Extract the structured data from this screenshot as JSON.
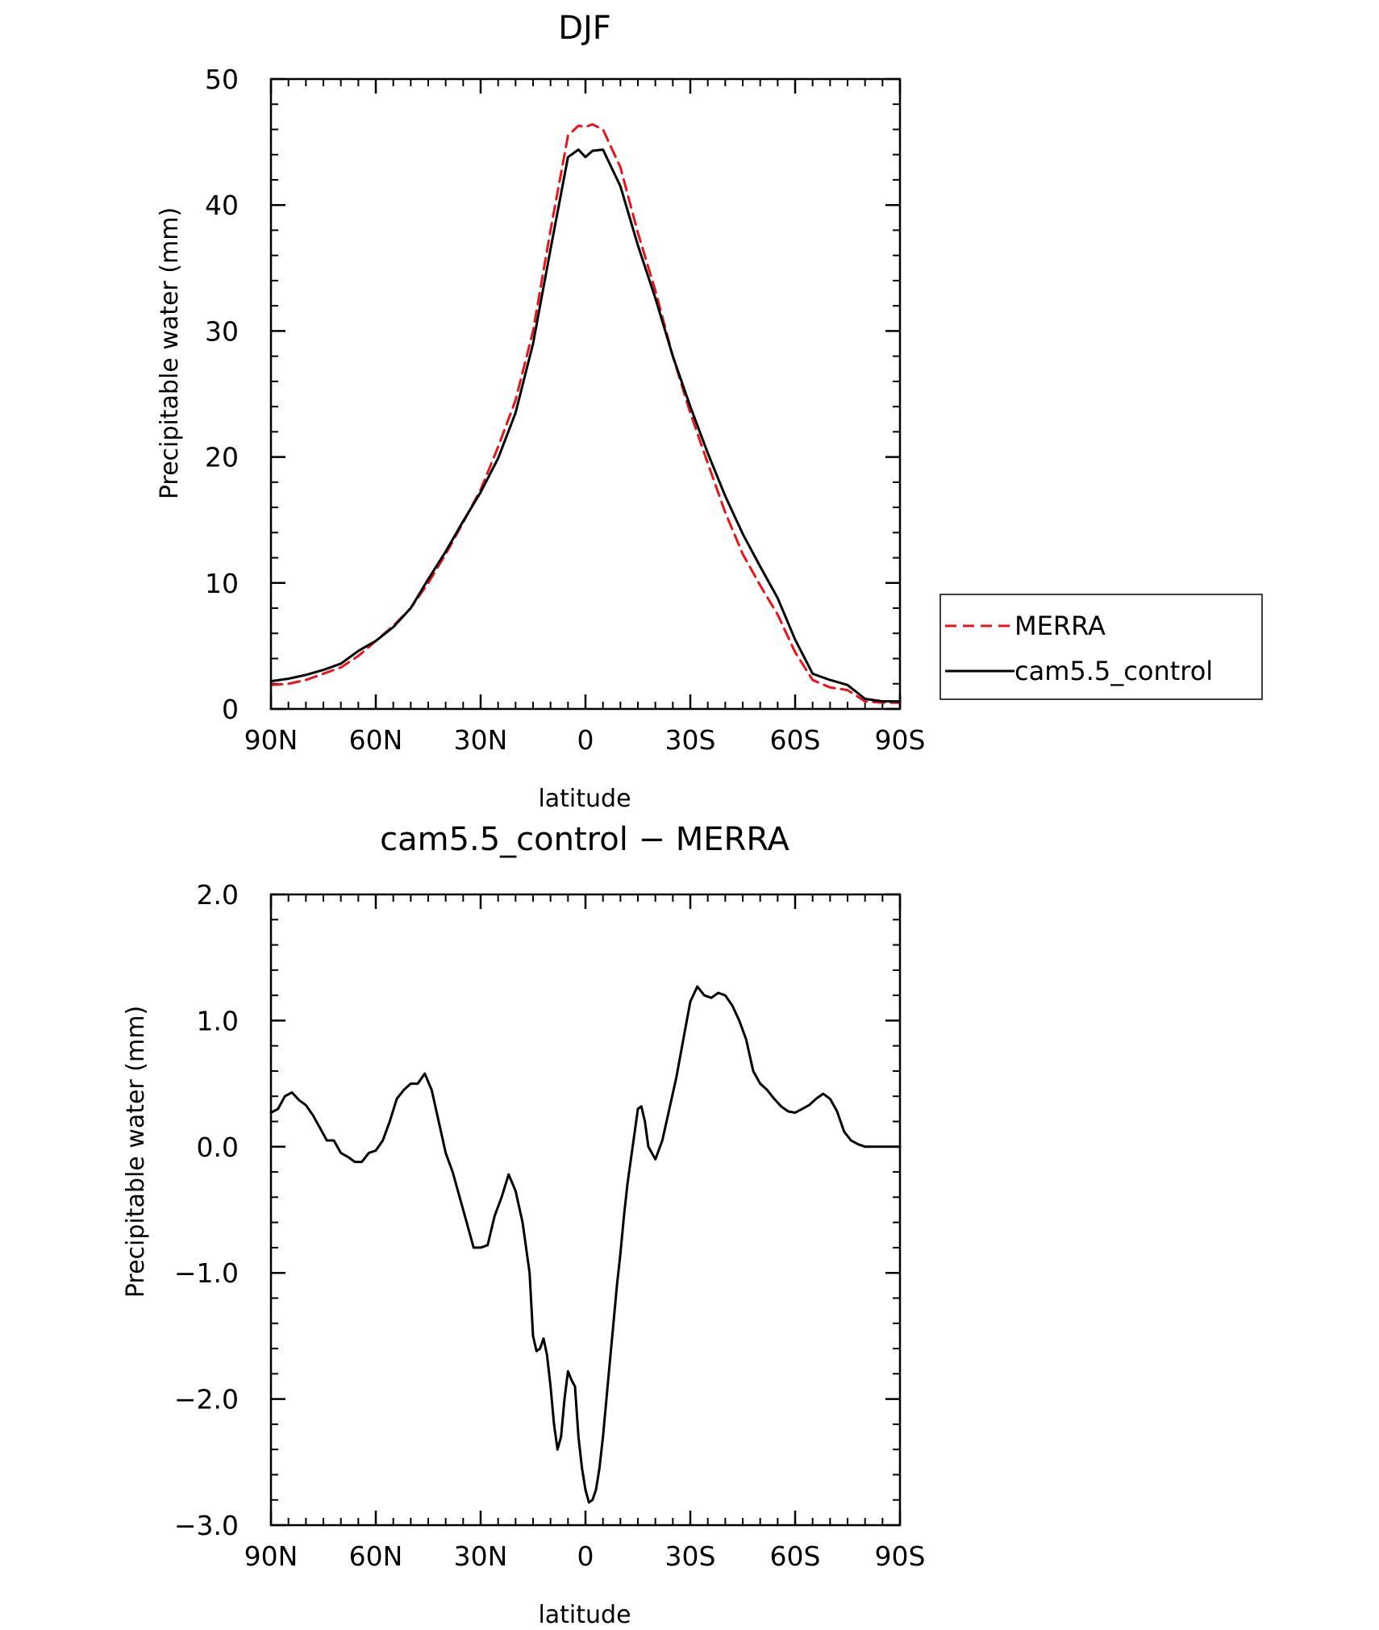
{
  "chart_data": [
    {
      "type": "line",
      "title": "DJF",
      "xlabel": "latitude",
      "ylabel": "Precipitable water (mm)",
      "xlim": [
        90,
        -90
      ],
      "ylim": [
        0,
        50
      ],
      "x_ticks": [
        90,
        60,
        30,
        0,
        -30,
        -60,
        -90
      ],
      "x_tick_labels": [
        "90N",
        "60N",
        "30N",
        "0",
        "30S",
        "60S",
        "90S"
      ],
      "y_ticks": [
        0,
        10,
        20,
        30,
        40,
        50
      ],
      "y_tick_labels": [
        "0",
        "10",
        "20",
        "30",
        "40",
        "50"
      ],
      "grid": false,
      "legend_position": "right",
      "series": [
        {
          "name": "MERRA",
          "color": "#e8141c",
          "dash": "dashed",
          "x": [
            90,
            85,
            80,
            75,
            70,
            65,
            60,
            55,
            50,
            45,
            40,
            35,
            30,
            25,
            20,
            15,
            10,
            5,
            2,
            0,
            -2,
            -5,
            -10,
            -15,
            -20,
            -25,
            -30,
            -35,
            -40,
            -45,
            -50,
            -55,
            -60,
            -65,
            -70,
            -75,
            -80,
            -85,
            -90
          ],
          "y": [
            1.9,
            2.0,
            2.3,
            2.8,
            3.3,
            4.2,
            5.4,
            6.6,
            8.0,
            10.0,
            12.3,
            14.8,
            17.4,
            20.8,
            24.5,
            30.0,
            38.0,
            45.5,
            46.3,
            46.2,
            46.4,
            46.0,
            43.0,
            37.8,
            33.2,
            28.0,
            23.5,
            19.5,
            15.6,
            12.3,
            9.8,
            7.5,
            4.5,
            2.3,
            1.7,
            1.5,
            0.6,
            0.5,
            0.5
          ]
        },
        {
          "name": "cam5.5_control",
          "color": "#000000",
          "dash": "solid",
          "x": [
            90,
            85,
            80,
            75,
            70,
            65,
            60,
            55,
            50,
            45,
            40,
            35,
            30,
            25,
            20,
            15,
            10,
            5,
            2,
            0,
            -2,
            -5,
            -10,
            -15,
            -20,
            -25,
            -30,
            -35,
            -40,
            -45,
            -50,
            -55,
            -60,
            -65,
            -70,
            -75,
            -80,
            -85,
            -90
          ],
          "y": [
            2.2,
            2.4,
            2.7,
            3.1,
            3.6,
            4.6,
            5.4,
            6.5,
            8.0,
            10.3,
            12.5,
            14.9,
            17.2,
            19.9,
            23.5,
            29.0,
            36.5,
            43.8,
            44.4,
            43.8,
            44.3,
            44.4,
            41.5,
            36.8,
            32.6,
            28.0,
            24.0,
            20.3,
            16.9,
            13.9,
            11.3,
            8.8,
            5.5,
            2.8,
            2.3,
            1.9,
            0.8,
            0.6,
            0.6
          ]
        }
      ]
    },
    {
      "type": "line",
      "title": "cam5.5_control − MERRA",
      "xlabel": "latitude",
      "ylabel": "Precipitable water (mm)",
      "xlim": [
        90,
        -90
      ],
      "ylim": [
        -3.0,
        2.0
      ],
      "x_ticks": [
        90,
        60,
        30,
        0,
        -30,
        -60,
        -90
      ],
      "x_tick_labels": [
        "90N",
        "60N",
        "30N",
        "0",
        "30S",
        "60S",
        "90S"
      ],
      "y_ticks": [
        2.0,
        1.0,
        0.0,
        -1.0,
        -2.0,
        -3.0
      ],
      "y_tick_labels": [
        "2.0",
        "1.0",
        "0.0",
        "−1.0",
        "−2.0",
        "−3.0"
      ],
      "grid": false,
      "series": [
        {
          "name": "",
          "color": "#000000",
          "dash": "solid",
          "x": [
            90,
            88,
            86,
            84,
            82,
            80,
            78,
            76,
            74,
            72,
            70,
            68,
            66,
            64,
            62,
            60,
            58,
            56,
            54,
            52,
            50,
            48,
            46,
            44,
            42,
            40,
            38,
            36,
            34,
            32,
            30,
            28,
            26,
            24,
            22,
            20,
            18,
            16,
            15,
            14,
            13,
            12,
            11,
            10,
            9,
            8,
            7,
            6,
            5,
            4,
            3,
            2,
            1,
            0,
            -1,
            -2,
            -3,
            -4,
            -5,
            -6,
            -7,
            -8,
            -9,
            -10,
            -11,
            -12,
            -13,
            -14,
            -15,
            -16,
            -17,
            -18,
            -20,
            -22,
            -24,
            -26,
            -28,
            -30,
            -32,
            -34,
            -36,
            -38,
            -40,
            -42,
            -44,
            -46,
            -48,
            -50,
            -52,
            -54,
            -56,
            -58,
            -60,
            -62,
            -64,
            -66,
            -68,
            -70,
            -72,
            -74,
            -76,
            -78,
            -80,
            -82,
            -84,
            -86,
            -88,
            -90
          ],
          "y": [
            0.27,
            0.3,
            0.4,
            0.43,
            0.37,
            0.33,
            0.25,
            0.15,
            0.05,
            0.05,
            -0.05,
            -0.08,
            -0.12,
            -0.12,
            -0.05,
            -0.03,
            0.05,
            0.2,
            0.38,
            0.45,
            0.5,
            0.5,
            0.58,
            0.45,
            0.2,
            -0.05,
            -0.2,
            -0.4,
            -0.6,
            -0.8,
            -0.8,
            -0.78,
            -0.55,
            -0.4,
            -0.22,
            -0.35,
            -0.6,
            -1.0,
            -1.5,
            -1.62,
            -1.6,
            -1.52,
            -1.65,
            -1.9,
            -2.2,
            -2.4,
            -2.3,
            -2.0,
            -1.78,
            -1.85,
            -1.9,
            -2.3,
            -2.55,
            -2.72,
            -2.82,
            -2.8,
            -2.72,
            -2.55,
            -2.3,
            -2.0,
            -1.7,
            -1.4,
            -1.1,
            -0.85,
            -0.55,
            -0.3,
            -0.1,
            0.1,
            0.3,
            0.32,
            0.2,
            0.0,
            -0.1,
            0.05,
            0.3,
            0.55,
            0.85,
            1.15,
            1.27,
            1.2,
            1.18,
            1.22,
            1.2,
            1.12,
            1.0,
            0.85,
            0.6,
            0.5,
            0.45,
            0.38,
            0.32,
            0.28,
            0.27,
            0.3,
            0.33,
            0.38,
            0.42,
            0.38,
            0.28,
            0.12,
            0.05,
            0.02,
            0.0,
            0.0,
            0.0,
            0.0,
            0.0,
            0.0
          ]
        }
      ]
    }
  ]
}
